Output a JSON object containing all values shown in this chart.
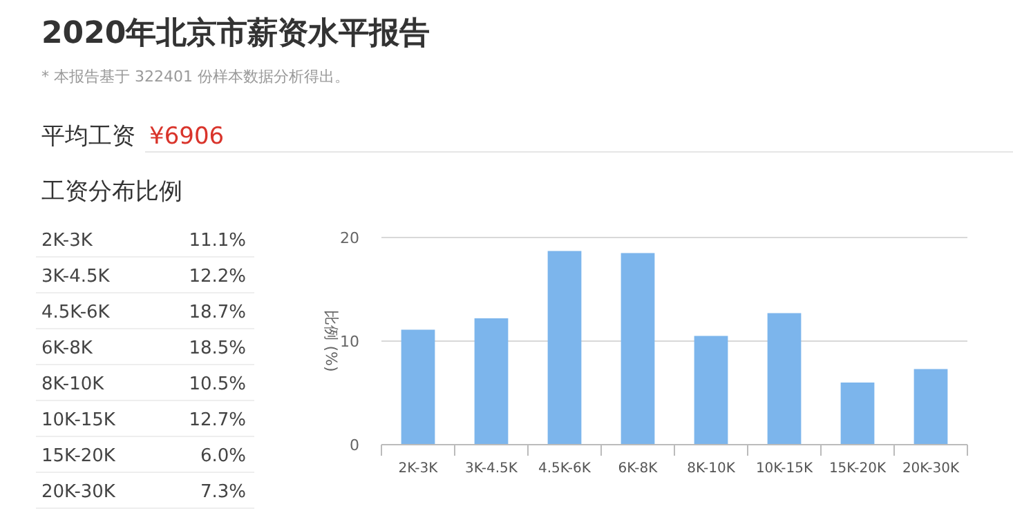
{
  "chart_data": [
    {
      "type": "other",
      "title": "2020年北京市薪资水平报告",
      "subtitle": "* 本报告基于 322401 份样本数据分析得出。",
      "annotations": [
        "平均工资",
        "¥6906",
        "工资分布比例",
        "2K-3K",
        "11.1%",
        "3K-4.5K",
        "12.2%",
        "4.5K-6K",
        "18.7%",
        "6K-8K",
        "18.5%",
        "8K-10K",
        "10.5%",
        "10K-15K",
        "12.7%",
        "15K-20K",
        "6.0%",
        "20K-30K",
        "7.3%"
      ]
    },
    {
      "type": "bar",
      "ylabel": "比例 (%)",
      "categories": [
        "2K-3K",
        "3K-4.5K",
        "4.5K-6K",
        "6K-8K",
        "8K-10K",
        "10K-15K",
        "15K-20K",
        "20K-30K"
      ],
      "values": [
        11.1,
        12.2,
        18.7,
        18.5,
        10.5,
        12.7,
        6.0,
        7.3
      ],
      "color": "#7cb5ec",
      "ylim": [
        0,
        20
      ],
      "yticks": [
        0,
        10,
        20
      ],
      "grid": "y"
    }
  ]
}
